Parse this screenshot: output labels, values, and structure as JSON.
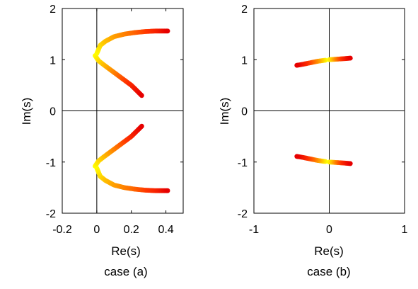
{
  "chart_data": [
    {
      "type": "scatter",
      "xlabel": "Re(s)",
      "ylabel": "Im(s)",
      "caption": "case (a)",
      "xlim": [
        -0.2,
        0.5
      ],
      "ylim": [
        -2,
        2
      ],
      "xticks": [
        -0.2,
        0,
        0.2,
        0.4
      ],
      "xtick_labels": [
        "-0.2",
        "0",
        "0.2",
        "0.4"
      ],
      "yticks": [
        -2,
        -1,
        0,
        1,
        2
      ],
      "ytick_labels": [
        "-2",
        "-1",
        "0",
        "1",
        "2"
      ],
      "zero_lines": true,
      "grid": false,
      "color_scale": [
        "#ffff00",
        "#ff9900",
        "#ff3300",
        "#e60000"
      ],
      "series": [
        {
          "points": [
            [
              0.0,
              1.12
            ],
            [
              0.02,
              1.28
            ],
            [
              0.05,
              1.36
            ],
            [
              0.1,
              1.45
            ],
            [
              0.16,
              1.5
            ],
            [
              0.22,
              1.53
            ],
            [
              0.28,
              1.55
            ],
            [
              0.34,
              1.56
            ],
            [
              0.38,
              1.56
            ],
            [
              0.41,
              1.56
            ]
          ],
          "shade": [
            0.0,
            0.1,
            0.2,
            0.3,
            0.4,
            0.5,
            0.62,
            0.75,
            0.88,
            1.0
          ]
        },
        {
          "points": [
            [
              -0.01,
              1.08
            ],
            [
              0.01,
              0.98
            ],
            [
              0.04,
              0.9
            ],
            [
              0.08,
              0.8
            ],
            [
              0.12,
              0.7
            ],
            [
              0.16,
              0.6
            ],
            [
              0.2,
              0.5
            ],
            [
              0.23,
              0.4
            ],
            [
              0.26,
              0.3
            ]
          ],
          "shade": [
            0.0,
            0.1,
            0.2,
            0.33,
            0.46,
            0.6,
            0.74,
            0.87,
            1.0
          ]
        },
        {
          "points": [
            [
              0.0,
              -1.12
            ],
            [
              0.02,
              -1.28
            ],
            [
              0.05,
              -1.36
            ],
            [
              0.1,
              -1.45
            ],
            [
              0.16,
              -1.5
            ],
            [
              0.22,
              -1.53
            ],
            [
              0.28,
              -1.55
            ],
            [
              0.34,
              -1.56
            ],
            [
              0.38,
              -1.56
            ],
            [
              0.41,
              -1.56
            ]
          ],
          "shade": [
            0.0,
            0.1,
            0.2,
            0.3,
            0.4,
            0.5,
            0.62,
            0.75,
            0.88,
            1.0
          ]
        },
        {
          "points": [
            [
              -0.01,
              -1.08
            ],
            [
              0.01,
              -0.98
            ],
            [
              0.04,
              -0.9
            ],
            [
              0.08,
              -0.8
            ],
            [
              0.12,
              -0.7
            ],
            [
              0.16,
              -0.6
            ],
            [
              0.2,
              -0.5
            ],
            [
              0.23,
              -0.4
            ],
            [
              0.26,
              -0.3
            ]
          ],
          "shade": [
            0.0,
            0.1,
            0.2,
            0.33,
            0.46,
            0.6,
            0.74,
            0.87,
            1.0
          ]
        }
      ]
    },
    {
      "type": "scatter",
      "xlabel": "Re(s)",
      "ylabel": "Im(s)",
      "caption": "case (b)",
      "xlim": [
        -1,
        1
      ],
      "ylim": [
        -2,
        2
      ],
      "xticks": [
        -1,
        0,
        1
      ],
      "xtick_labels": [
        "-1",
        "0",
        "1"
      ],
      "yticks": [
        -2,
        -1,
        0,
        1,
        2
      ],
      "ytick_labels": [
        "-2",
        "-1",
        "0",
        "1",
        "2"
      ],
      "zero_lines": true,
      "grid": false,
      "color_scale": [
        "#ffff00",
        "#ff9900",
        "#ff3300",
        "#e60000"
      ],
      "series": [
        {
          "points": [
            [
              -0.05,
              0.99
            ],
            [
              -0.15,
              0.97
            ],
            [
              -0.25,
              0.94
            ],
            [
              -0.35,
              0.91
            ],
            [
              -0.43,
              0.89
            ]
          ],
          "shade": [
            0.0,
            0.3,
            0.55,
            0.8,
            1.0
          ]
        },
        {
          "points": [
            [
              0.0,
              1.0
            ],
            [
              0.1,
              1.01
            ],
            [
              0.2,
              1.02
            ],
            [
              0.28,
              1.03
            ]
          ],
          "shade": [
            0.0,
            0.4,
            0.75,
            1.0
          ]
        },
        {
          "points": [
            [
              -0.05,
              -0.99
            ],
            [
              -0.15,
              -0.97
            ],
            [
              -0.25,
              -0.94
            ],
            [
              -0.35,
              -0.91
            ],
            [
              -0.43,
              -0.89
            ]
          ],
          "shade": [
            0.0,
            0.3,
            0.55,
            0.8,
            1.0
          ]
        },
        {
          "points": [
            [
              0.0,
              -1.0
            ],
            [
              0.1,
              -1.01
            ],
            [
              0.2,
              -1.02
            ],
            [
              0.28,
              -1.03
            ]
          ],
          "shade": [
            0.0,
            0.4,
            0.75,
            1.0
          ]
        }
      ]
    }
  ]
}
